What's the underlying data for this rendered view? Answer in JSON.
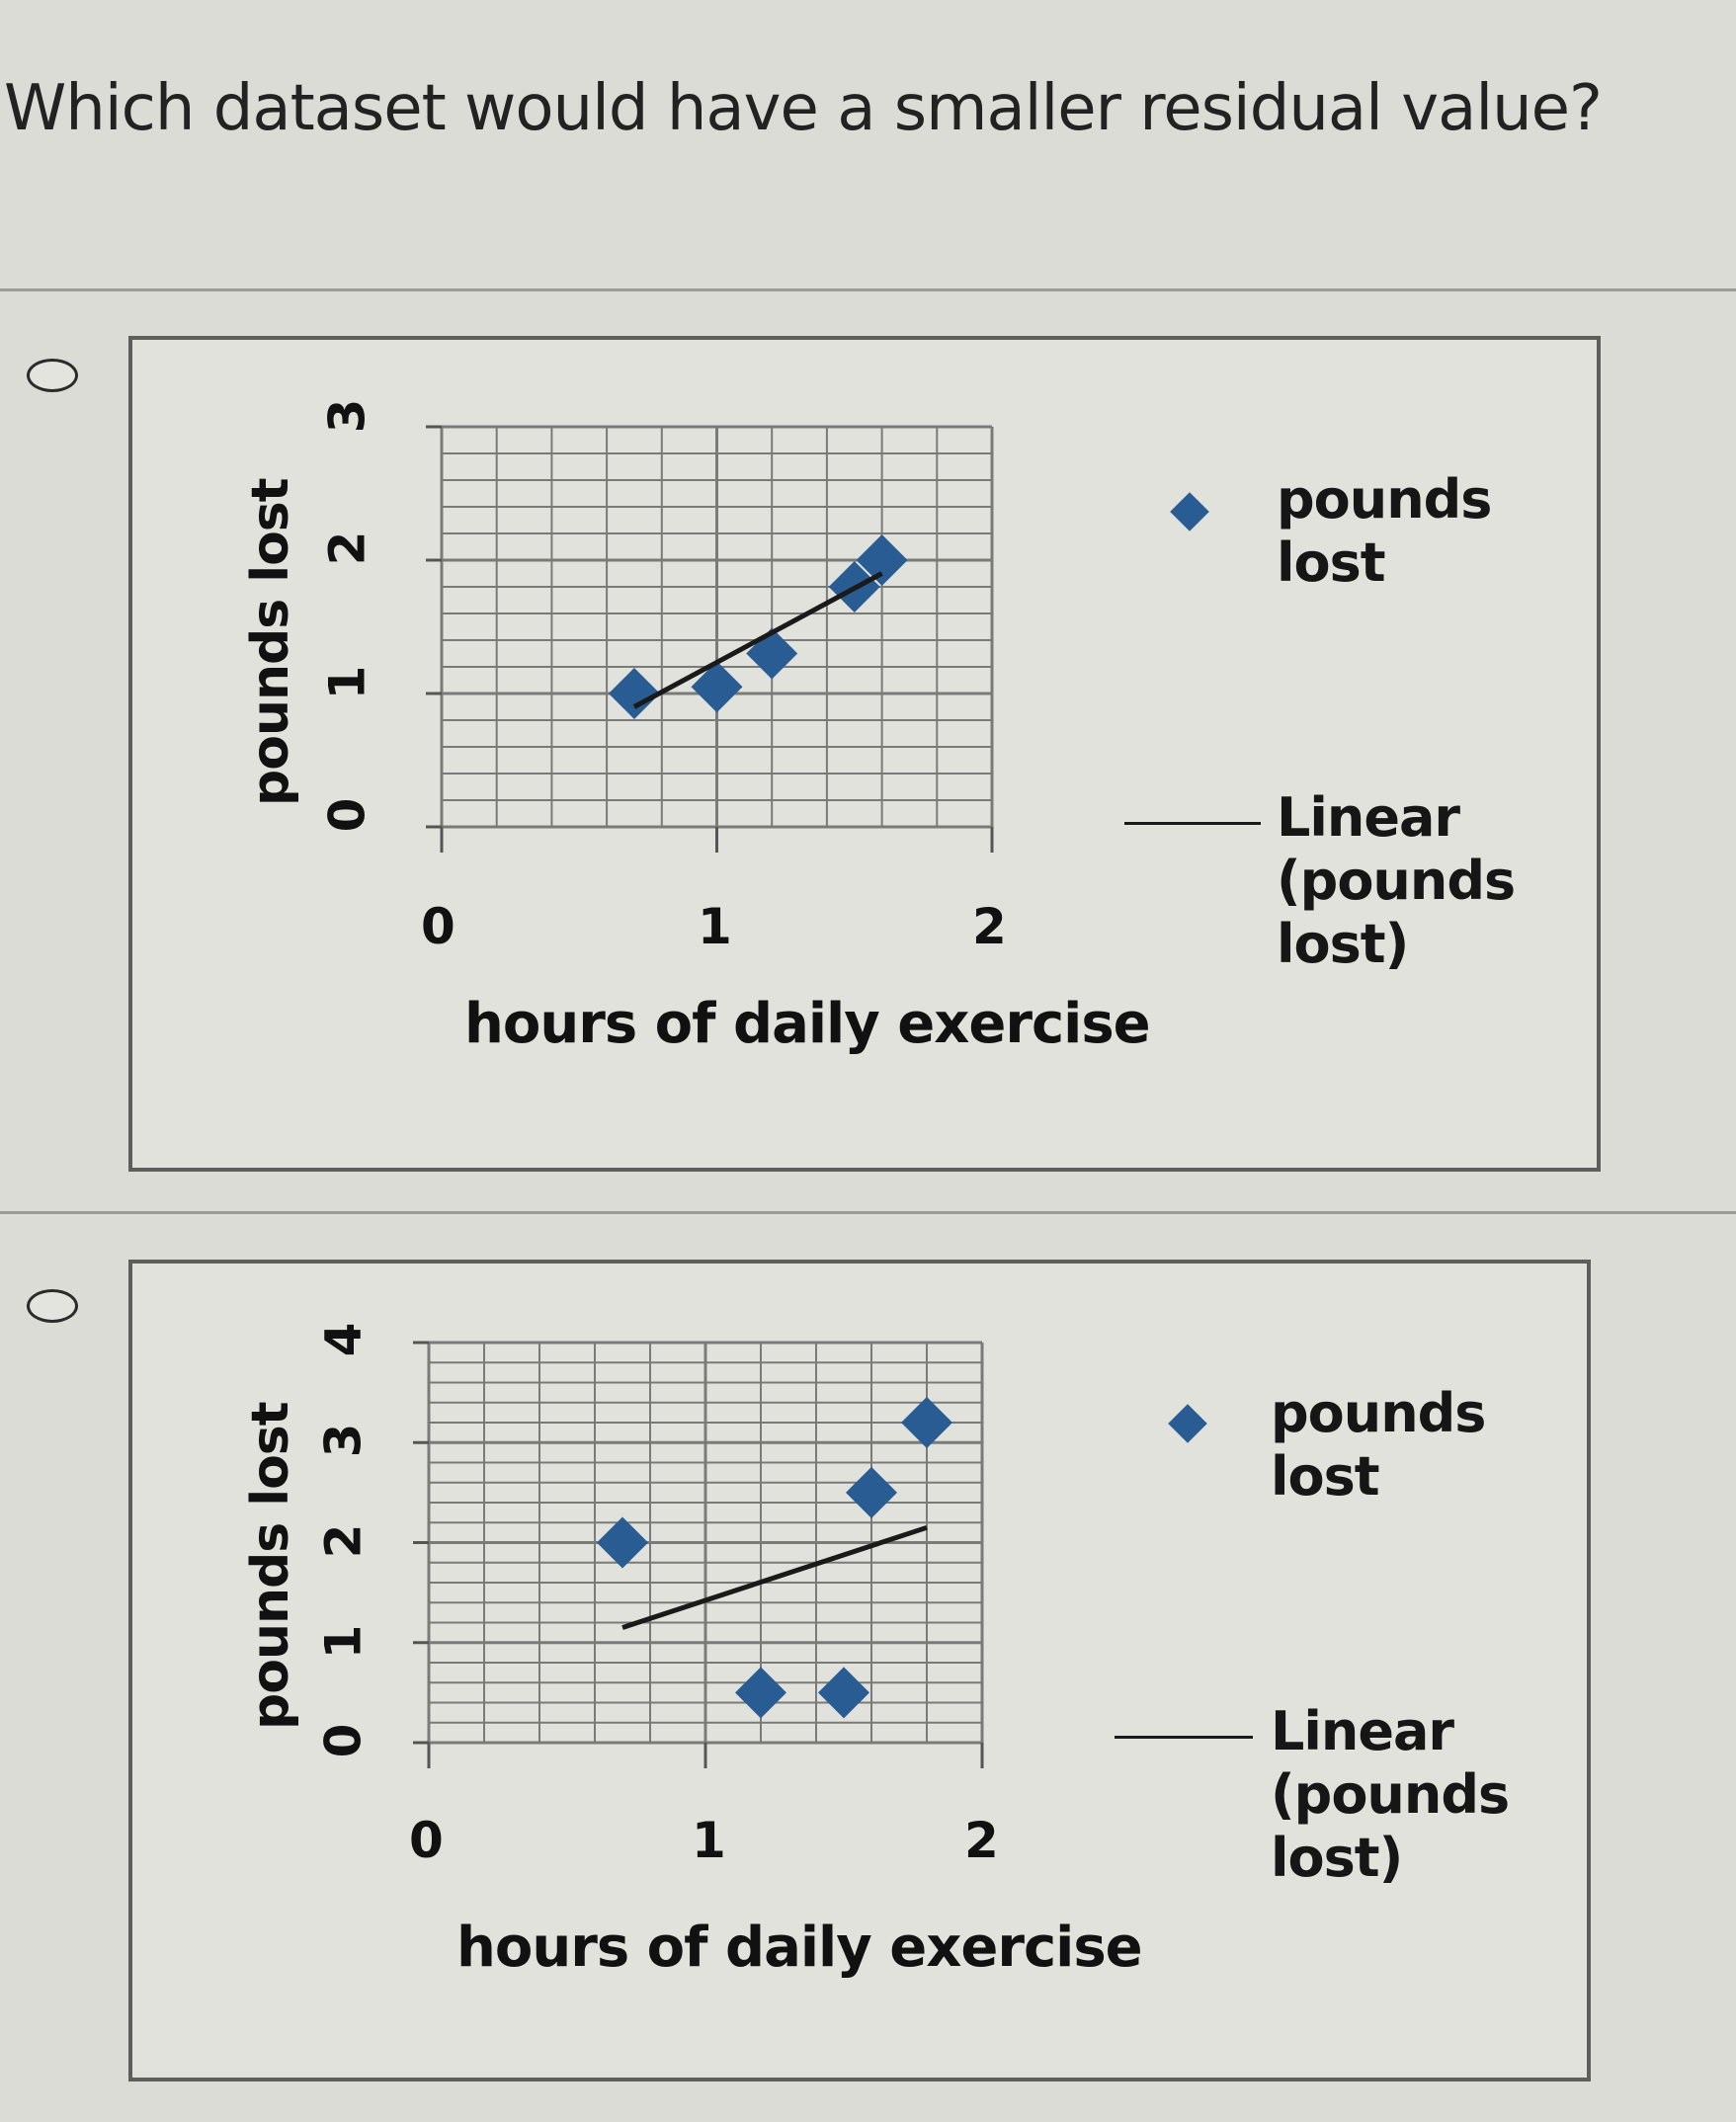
{
  "question": {
    "text": "Which dataset would have a smaller residual value?"
  },
  "options": [
    {
      "id": "A",
      "selected": false,
      "chart": {
        "y_axis_title": "pounds lost",
        "x_axis_title": "hours of daily exercise",
        "y_ticks": [
          "0",
          "1",
          "2",
          "3"
        ],
        "x_ticks": [
          "0",
          "1",
          "2"
        ],
        "legend": {
          "series_label_line1": "pounds",
          "series_label_line2": "lost",
          "trend_label_line1": "Linear",
          "trend_label_line2": "(pounds",
          "trend_label_line3": "lost)"
        }
      }
    },
    {
      "id": "B",
      "selected": false,
      "chart": {
        "y_axis_title": "pounds lost",
        "x_axis_title": "hours of daily exercise",
        "y_ticks": [
          "0",
          "1",
          "2",
          "3",
          "4"
        ],
        "x_ticks": [
          "0",
          "1",
          "2"
        ],
        "legend": {
          "series_label_line1": "pounds",
          "series_label_line2": "lost",
          "trend_label_line1": "Linear",
          "trend_label_line2": "(pounds",
          "trend_label_line3": "lost)"
        }
      }
    }
  ],
  "colors": {
    "marker": "#2a5c94",
    "trendline": "#1a1a1a",
    "grid": "#7a7a78",
    "background": "#dcdcd6"
  },
  "chart_data": [
    {
      "type": "scatter",
      "title": "",
      "xlabel": "hours of daily exercise",
      "ylabel": "pounds lost",
      "xlim": [
        0,
        2
      ],
      "ylim": [
        0,
        3
      ],
      "grid": true,
      "legend_position": "right",
      "series": [
        {
          "name": "pounds lost",
          "marker": "diamond",
          "x": [
            0.7,
            1.0,
            1.2,
            1.5,
            1.6
          ],
          "y": [
            1.0,
            1.05,
            1.3,
            1.8,
            2.0
          ]
        },
        {
          "name": "Linear (pounds lost)",
          "type": "line",
          "x": [
            0.7,
            1.6
          ],
          "y": [
            0.9,
            1.9
          ]
        }
      ]
    },
    {
      "type": "scatter",
      "title": "",
      "xlabel": "hours of daily exercise",
      "ylabel": "pounds lost",
      "xlim": [
        0,
        2
      ],
      "ylim": [
        0,
        4
      ],
      "grid": true,
      "legend_position": "right",
      "series": [
        {
          "name": "pounds lost",
          "marker": "diamond",
          "x": [
            0.7,
            1.2,
            1.5,
            1.6,
            1.8
          ],
          "y": [
            2.0,
            0.5,
            0.5,
            2.5,
            3.2
          ]
        },
        {
          "name": "Linear (pounds lost)",
          "type": "line",
          "x": [
            0.7,
            1.8
          ],
          "y": [
            1.15,
            2.15
          ]
        }
      ]
    }
  ]
}
